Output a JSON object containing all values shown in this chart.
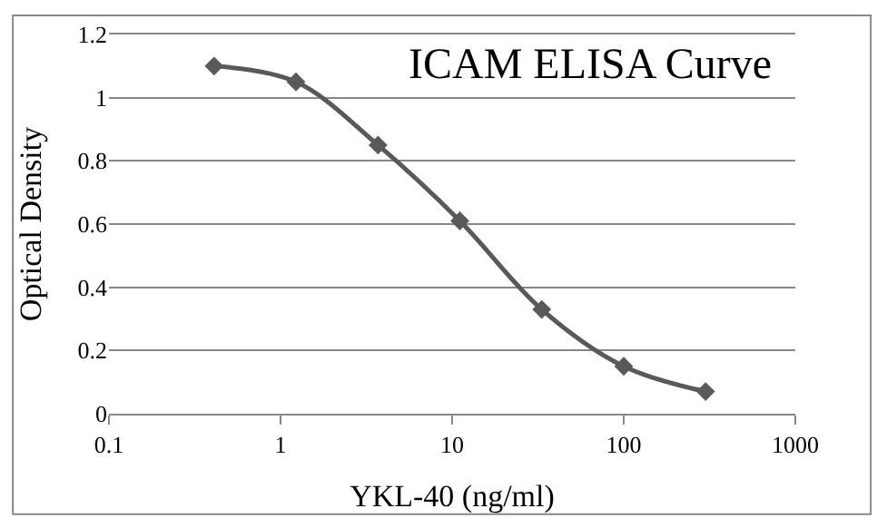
{
  "chart_data": {
    "type": "line",
    "title": "ICAM ELISA Curve",
    "xlabel": "YKL-40 (ng/ml)",
    "ylabel": "Optical Density",
    "x": [
      0.41,
      1.23,
      3.7,
      11.1,
      33.3,
      100,
      300
    ],
    "series": [
      {
        "color": "#595959",
        "values": [
          1.1,
          1.05,
          0.85,
          0.61,
          0.33,
          0.15,
          0.07
        ]
      }
    ],
    "log": "x",
    "xlim": [
      0.1,
      1000
    ],
    "xticks": [
      0.1,
      1,
      10,
      100,
      1000
    ],
    "ylim": [
      0,
      1.2
    ],
    "yticks": [
      0,
      0.2,
      0.4,
      0.6,
      0.8,
      1,
      1.2
    ],
    "grid": "y",
    "marker": "diamond",
    "line_style": "solid"
  }
}
